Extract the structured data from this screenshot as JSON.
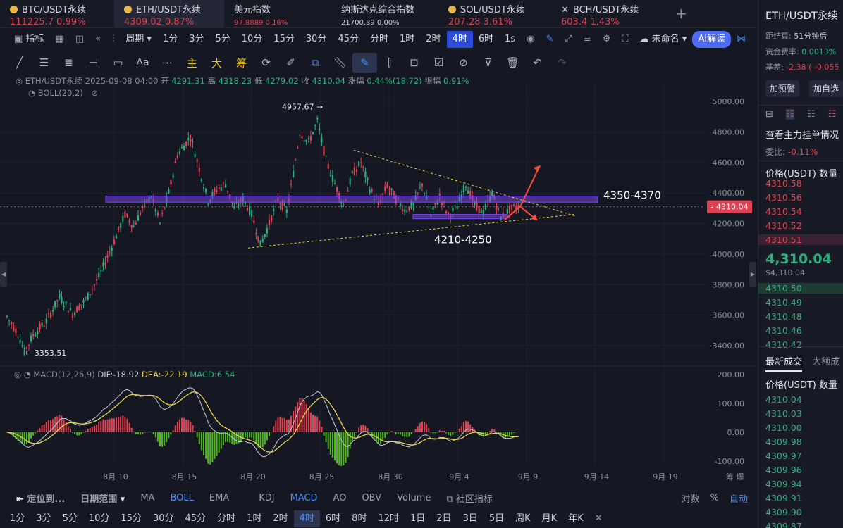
{
  "tabs": [
    {
      "name": "BTC/USDT永续",
      "price": "111225.7",
      "change": "0.99%",
      "coin": true
    },
    {
      "name": "ETH/USDT永续",
      "price": "4309.02",
      "change": "0.87%",
      "coin": true
    },
    {
      "name": "美元指数",
      "price": "97.8889",
      "change": "0.16%",
      "coin": false
    },
    {
      "name": "纳斯达克综合指数",
      "price": "21700.39",
      "change": "0.00%",
      "coin": false
    },
    {
      "name": "SOL/USDT永续",
      "price": "207.28",
      "change": "3.61%",
      "coin": true
    },
    {
      "name": "BCH/USDT永续",
      "price": "603.4",
      "change": "1.43%",
      "coin": false
    }
  ],
  "toolbar": {
    "indicator": "指标",
    "period": "周期",
    "intervals": [
      "1分",
      "3分",
      "5分",
      "10分",
      "15分",
      "30分",
      "45分",
      "分时",
      "1时",
      "2时",
      "4时",
      "6时"
    ],
    "active_interval": "4时",
    "second": "1s",
    "account": "未命名",
    "ai": "AI解读"
  },
  "draw_tools": {
    "main": "主",
    "big": "大",
    "chip": "筹"
  },
  "info": {
    "symbol": "ETH/USDT永续",
    "datetime": "2025-09-08 04:00",
    "open_label": "开",
    "open": "4291.31",
    "high_label": "高",
    "high": "4318.23",
    "low_label": "低",
    "low": "4279.02",
    "close_label": "收",
    "close": "4310.04",
    "chg_label": "涨幅",
    "chg": "0.44%(18.72)",
    "amp_label": "振幅",
    "amp": "0.91%",
    "boll": "BOLL(20,2)"
  },
  "chart_data": {
    "type": "candlestick",
    "y_ticks": [
      "5000.00",
      "4800.00",
      "4600.00",
      "4400.00",
      "4200.00",
      "4000.00",
      "3800.00",
      "3600.00",
      "3400.00"
    ],
    "ylim": [
      3320,
      5040
    ],
    "x_ticks": [
      "8月 10",
      "8月 15",
      "8月 20",
      "8月 25",
      "8月 30",
      "9月 4",
      "9月 9",
      "9月 14",
      "9月 19"
    ],
    "path": [
      [
        0,
        3590
      ],
      [
        5,
        3480
      ],
      [
        8,
        3360
      ],
      [
        12,
        3470
      ],
      [
        18,
        3560
      ],
      [
        24,
        3720
      ],
      [
        30,
        3610
      ],
      [
        36,
        3700
      ],
      [
        42,
        3850
      ],
      [
        48,
        4050
      ],
      [
        54,
        4260
      ],
      [
        58,
        4180
      ],
      [
        62,
        4300
      ],
      [
        66,
        4380
      ],
      [
        70,
        4200
      ],
      [
        74,
        4400
      ],
      [
        78,
        4650
      ],
      [
        84,
        4770
      ],
      [
        88,
        4560
      ],
      [
        92,
        4350
      ],
      [
        96,
        4420
      ],
      [
        100,
        4460
      ],
      [
        104,
        4300
      ],
      [
        108,
        4360
      ],
      [
        112,
        4260
      ],
      [
        116,
        4060
      ],
      [
        120,
        4200
      ],
      [
        124,
        4360
      ],
      [
        128,
        4280
      ],
      [
        130,
        4440
      ],
      [
        134,
        4800
      ],
      [
        138,
        4730
      ],
      [
        142,
        4870
      ],
      [
        146,
        4610
      ],
      [
        150,
        4460
      ],
      [
        154,
        4320
      ],
      [
        158,
        4520
      ],
      [
        162,
        4600
      ],
      [
        166,
        4430
      ],
      [
        170,
        4320
      ],
      [
        174,
        4450
      ],
      [
        178,
        4360
      ],
      [
        182,
        4290
      ],
      [
        186,
        4320
      ],
      [
        190,
        4460
      ],
      [
        194,
        4250
      ],
      [
        198,
        4380
      ],
      [
        202,
        4250
      ],
      [
        206,
        4310
      ],
      [
        210,
        4460
      ],
      [
        214,
        4320
      ],
      [
        218,
        4270
      ],
      [
        222,
        4400
      ],
      [
        226,
        4240
      ],
      [
        230,
        4290
      ],
      [
        234,
        4310
      ]
    ],
    "high_label": "4957.67",
    "low_label": "3353.51",
    "last_price": "4310.04",
    "zones": [
      {
        "label": "4350-4370",
        "low": 4350,
        "high": 4370
      },
      {
        "label": "4210-4250",
        "low": 4210,
        "high": 4250
      }
    ],
    "macd": {
      "label": "MACD(12,26,9)",
      "dif_label": "DIF:",
      "dif": "-18.92",
      "dea_label": "DEA:",
      "dea": "-22.19",
      "macd_label": "MACD:",
      "macd": "6.54",
      "y_ticks": [
        "200.00",
        "100.00",
        "0.00",
        "-100.00"
      ]
    }
  },
  "bottom": {
    "locate": "定位到...",
    "range": "日期范围",
    "inds": [
      "MA",
      "BOLL",
      "EMA",
      "KDJ",
      "MACD",
      "AO",
      "OBV",
      "Volume"
    ],
    "community": "社区指标",
    "log": "对数",
    "pct": "%",
    "auto": "自动",
    "periods": [
      "1分",
      "3分",
      "5分",
      "10分",
      "15分",
      "30分",
      "45分",
      "分时",
      "1时",
      "2时",
      "4时",
      "6时",
      "8时",
      "12时",
      "1日",
      "2日",
      "3日",
      "5日",
      "周K",
      "月K",
      "年K"
    ],
    "active": "4时"
  },
  "side": {
    "symbol": "ETH/USDT永续",
    "settle_label": "距结算:",
    "settle": "51分钟后",
    "fund_label": "资金费率:",
    "fund": "0.0013%",
    "basis_label": "基差:",
    "basis": "-2.38 ( -0.055",
    "alert": "加预警",
    "fav": "加自选",
    "depth": "查看主力挂单情况",
    "ratio_label": "委比:",
    "ratio": "-0.11%",
    "price_h": "价格(USDT)",
    "qty_h": "数量",
    "asks": [
      "4310.58",
      "4310.56",
      "4310.54",
      "4310.52",
      "4310.51"
    ],
    "mid": "4,310.04",
    "mid_usd": "$4,310.04",
    "bids": [
      "4310.50",
      "4310.49",
      "4310.48",
      "4310.46",
      "4310.42"
    ],
    "trades_tab": "最新成交",
    "big_tab": "大额成",
    "trades": [
      "4310.04",
      "4310.03",
      "4310.00",
      "4309.98",
      "4309.97",
      "4309.96",
      "4309.94",
      "4309.91",
      "4309.90",
      "4309.87"
    ]
  }
}
